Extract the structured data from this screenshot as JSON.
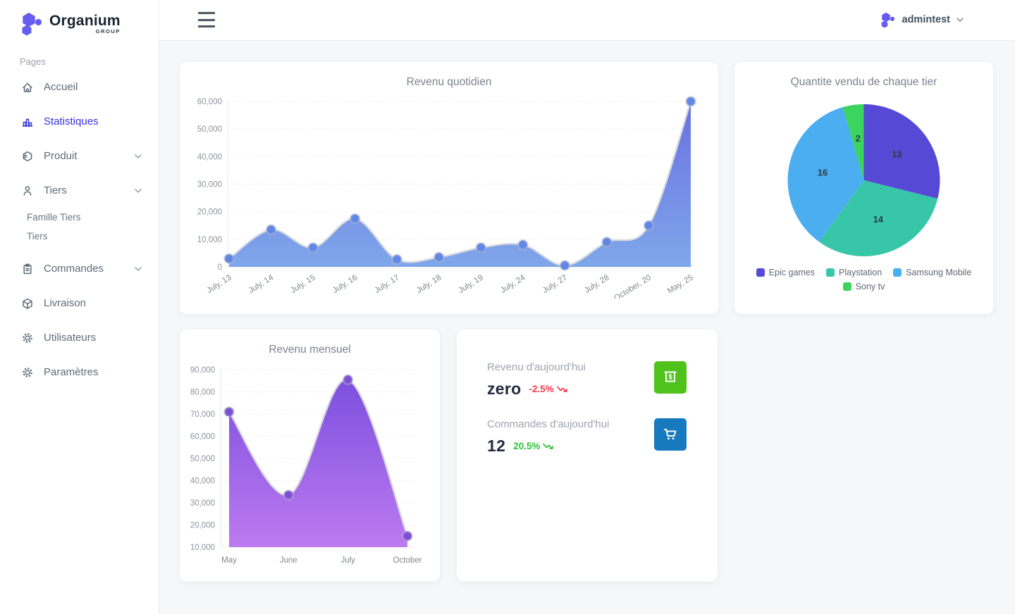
{
  "brand": {
    "name": "Organium",
    "subtitle": "GROUP"
  },
  "topbar": {
    "user": "admintest"
  },
  "sidebar": {
    "section": "Pages",
    "items": [
      {
        "label": "Accueil",
        "icon": "home-icon"
      },
      {
        "label": "Statistiques",
        "icon": "bar-chart-icon",
        "active": true
      },
      {
        "label": "Produit",
        "icon": "product-box-icon",
        "chevron": true
      },
      {
        "label": "Tiers",
        "icon": "user-icon",
        "chevron": true
      },
      {
        "label": "Famille Tiers",
        "sub": true
      },
      {
        "label": "Tiers",
        "sub": true
      },
      {
        "label": "Commandes",
        "icon": "clipboard-icon",
        "chevron": true
      },
      {
        "label": "Livraison",
        "icon": "package-icon"
      },
      {
        "label": "Utilisateurs",
        "icon": "gear-icon"
      },
      {
        "label": "Paramètres",
        "icon": "gear-icon"
      }
    ]
  },
  "stats": {
    "revenue": {
      "label": "Revenu d'aujourd'hui",
      "value": "zero",
      "delta": "-2.5%",
      "delta_color": "#f23a4c",
      "icon": "cash-icon",
      "icon_bg": "#4fc31c"
    },
    "orders": {
      "label": "Commandes d'aujourd'hui",
      "value": "12",
      "delta": "20.5%",
      "delta_color": "#2ec437",
      "icon": "cart-icon",
      "icon_bg": "#187abe"
    }
  },
  "chart_data": [
    {
      "type": "area",
      "title": "Revenu quotidien",
      "categories": [
        "July, 13",
        "July, 14",
        "July, 15",
        "July, 16",
        "July, 17",
        "July, 18",
        "July, 19",
        "July, 24",
        "July, 27",
        "July, 28",
        "October, 20",
        "May, 25"
      ],
      "values": [
        3000,
        13500,
        7000,
        17500,
        2700,
        3500,
        7000,
        8000,
        500,
        9000,
        15000,
        60000
      ],
      "ylim": [
        0,
        60000
      ],
      "ytick": 10000,
      "grid": "dotted",
      "legend": "none",
      "fill_from": "#6a70e2",
      "fill_to": "#7fa7ea",
      "line_color": "#d9dbde",
      "point_color": "#5f86e8"
    },
    {
      "type": "pie",
      "title": "Quantite vendu de chaque tier",
      "labels": [
        "Epic games",
        "Playstation",
        "Samsung Mobile",
        "Sony tv"
      ],
      "values": [
        13,
        14,
        16,
        2
      ],
      "colors": [
        "#5549d6",
        "#38c6a8",
        "#4aaef0",
        "#3bd45e"
      ],
      "legend": "bottom"
    },
    {
      "type": "area",
      "title": "Revenu mensuel",
      "categories": [
        "May",
        "June",
        "July",
        "October"
      ],
      "values": [
        71000,
        33500,
        85500,
        15000
      ],
      "ylim": [
        10000,
        90000
      ],
      "ytick": 10000,
      "grid": "dotted",
      "legend": "none",
      "fill_from": "#7c50de",
      "fill_to": "#bd7af0",
      "line_color": "#d9dbde",
      "point_color": "#7b4fd8"
    }
  ]
}
